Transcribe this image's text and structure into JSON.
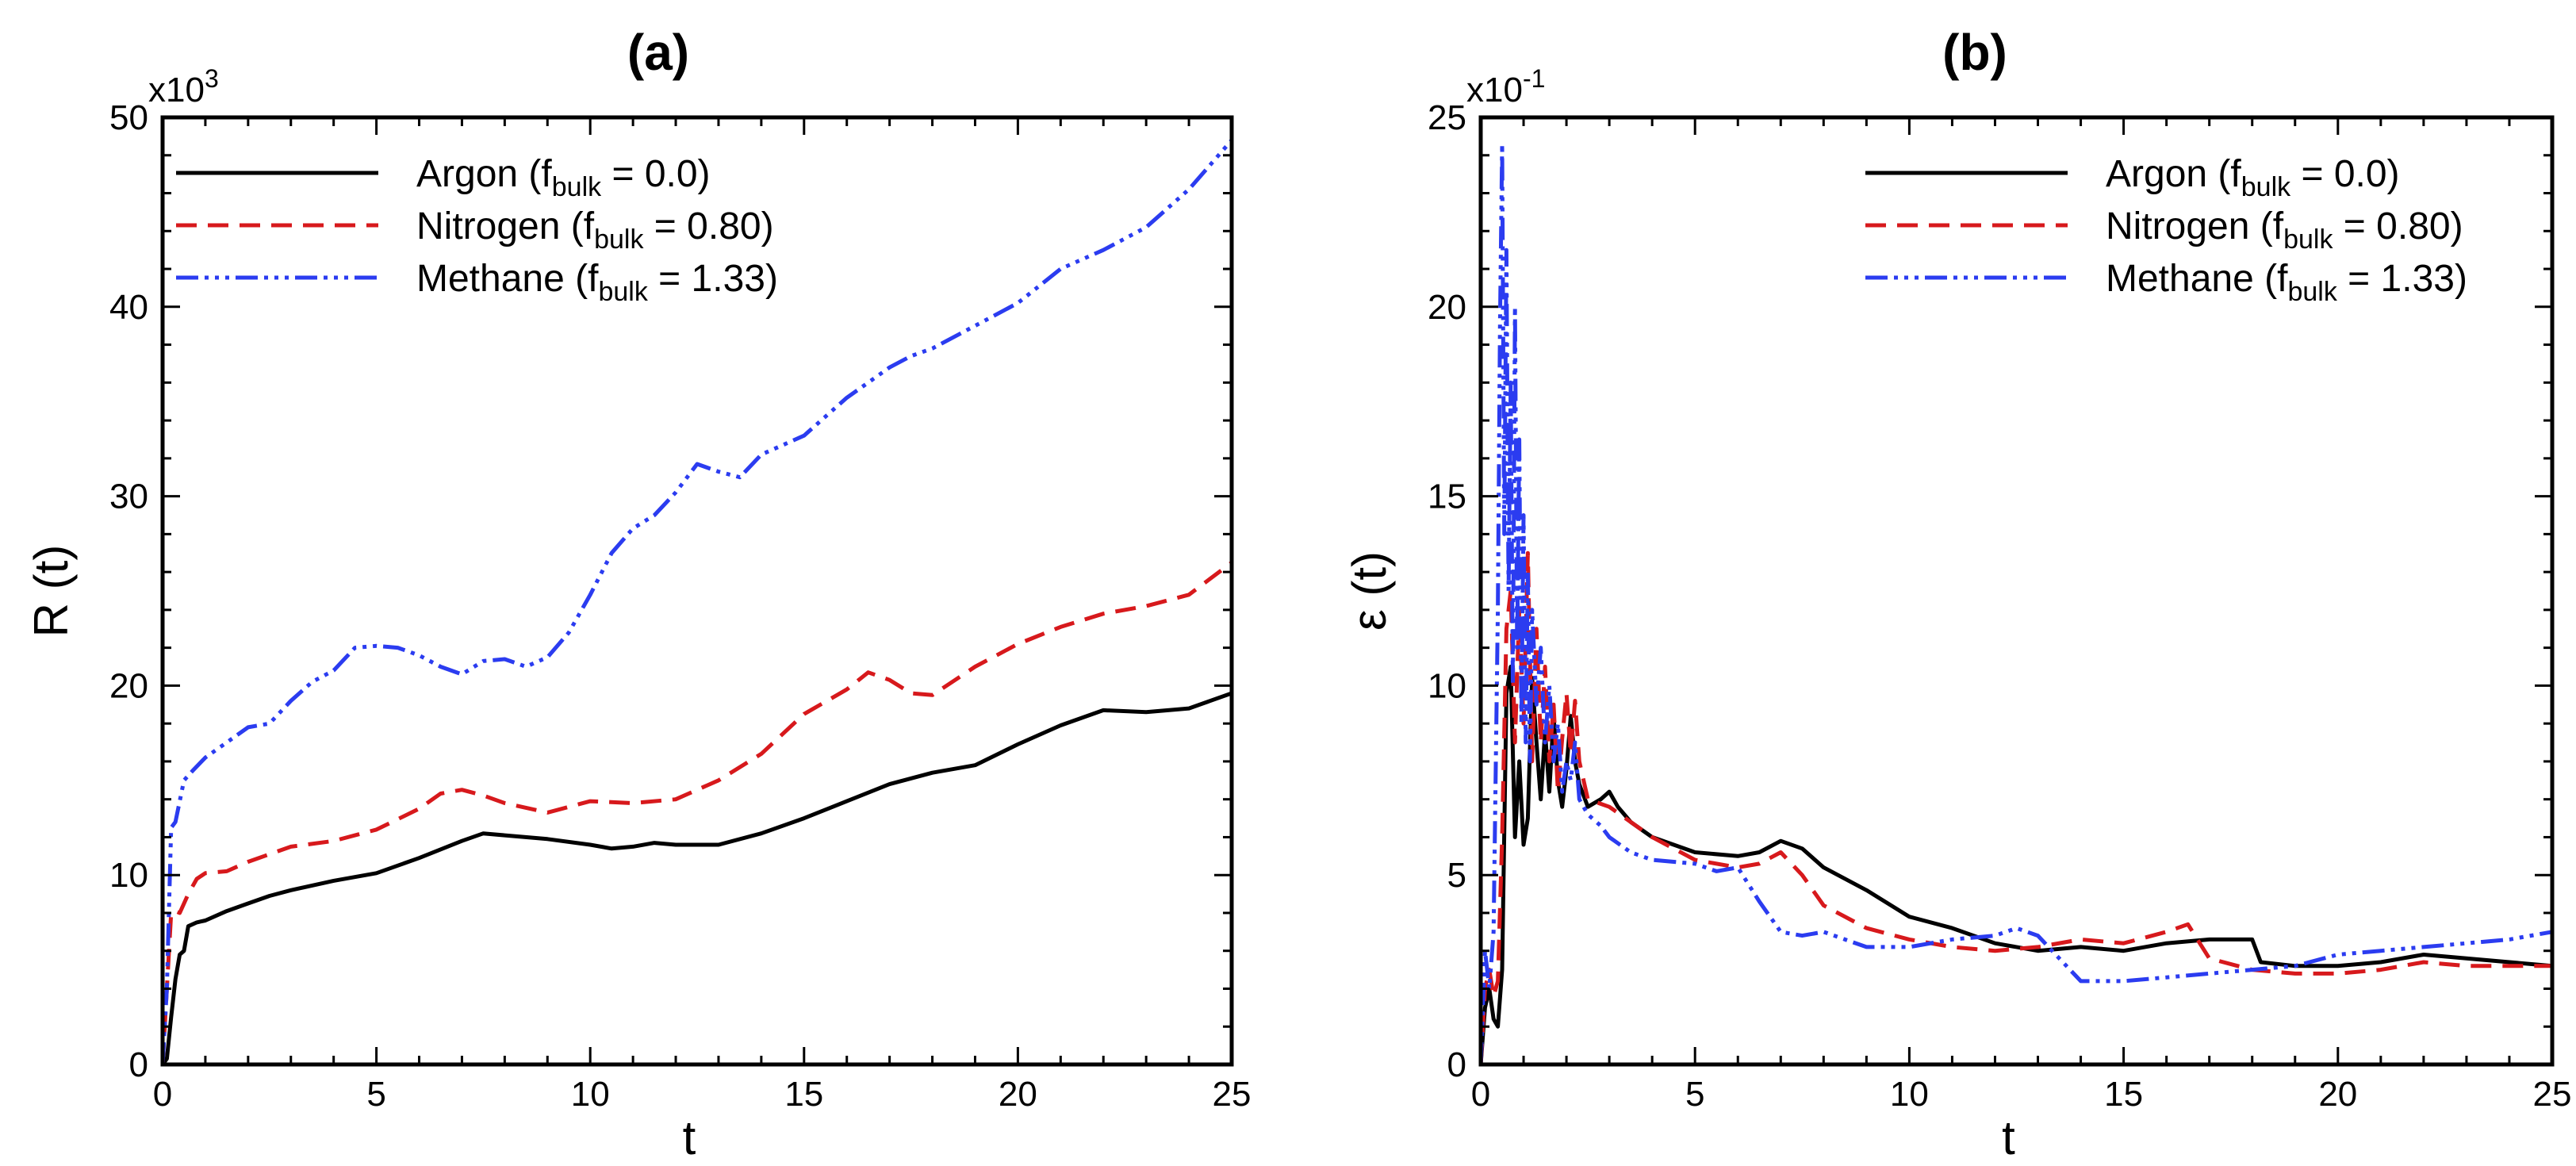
{
  "chart_data": [
    {
      "type": "line",
      "title": "(a)",
      "xlabel": "t",
      "ylabel": "R (t)",
      "y_multiplier": "x10",
      "y_multiplier_exp": "3",
      "xlim": [
        0,
        25
      ],
      "ylim": [
        0,
        50
      ],
      "xticks": [
        0,
        5,
        10,
        15,
        20,
        25
      ],
      "yticks": [
        0,
        10,
        20,
        30,
        40,
        50
      ],
      "legend_position": "top-left",
      "series": [
        {
          "name": "Argon",
          "legend_prefix": "Argon (f",
          "legend_sub": "bulk",
          "legend_suffix": " = 0.0)",
          "color": "#000000",
          "dash": "none",
          "x": [
            0,
            0.1,
            0.2,
            0.3,
            0.4,
            0.5,
            0.6,
            0.8,
            1,
            1.5,
            2,
            2.5,
            3,
            4,
            5,
            6,
            7,
            7.5,
            8,
            9,
            10,
            10.5,
            11,
            11.5,
            12,
            13,
            14,
            15,
            16,
            17,
            18,
            19,
            20,
            21,
            22,
            23,
            24,
            25
          ],
          "y": [
            0,
            0.3,
            2.5,
            4.5,
            5.8,
            6.0,
            7.3,
            7.5,
            7.6,
            8.1,
            8.5,
            8.9,
            9.2,
            9.7,
            10.1,
            10.9,
            11.8,
            12.2,
            12.1,
            11.9,
            11.6,
            11.4,
            11.5,
            11.7,
            11.6,
            11.6,
            12.2,
            13.0,
            13.9,
            14.8,
            15.4,
            15.8,
            16.9,
            17.9,
            18.7,
            18.6,
            18.8,
            19.6
          ]
        },
        {
          "name": "Nitrogen",
          "legend_prefix": "Nitrogen (f",
          "legend_sub": "bulk",
          "legend_suffix": " = 0.80)",
          "color": "#d7191c",
          "dash": "26,14",
          "x": [
            0,
            0.1,
            0.2,
            0.3,
            0.4,
            0.6,
            0.8,
            1,
            1.5,
            2,
            3,
            4,
            5,
            6,
            6.5,
            7,
            7.5,
            8,
            9,
            10,
            11,
            12,
            13,
            14,
            15,
            16,
            16.5,
            17,
            17.5,
            18,
            19,
            20,
            21,
            22,
            23,
            24,
            25
          ],
          "y": [
            0,
            4,
            8.0,
            8.1,
            8.0,
            9.0,
            9.8,
            10.1,
            10.2,
            10.7,
            11.5,
            11.8,
            12.4,
            13.5,
            14.3,
            14.5,
            14.2,
            13.8,
            13.3,
            13.9,
            13.8,
            14.0,
            15.0,
            16.4,
            18.5,
            19.8,
            20.7,
            20.3,
            19.6,
            19.5,
            21.0,
            22.2,
            23.1,
            23.8,
            24.2,
            24.8,
            26.5
          ]
        },
        {
          "name": "Methane",
          "legend_prefix": "Methane (f",
          "legend_sub": "bulk",
          "legend_suffix": " = 1.33)",
          "color": "#2b3cf0",
          "dash": "28,8,5,8,5,8,5,8",
          "x": [
            0,
            0.1,
            0.2,
            0.3,
            0.5,
            0.7,
            1,
            1.5,
            2,
            2.5,
            3,
            3.5,
            4,
            4.5,
            5,
            5.5,
            6,
            6.5,
            7,
            7.5,
            8,
            8.5,
            9,
            9.5,
            10,
            10.5,
            11,
            11.5,
            12,
            12.5,
            13,
            13.5,
            14,
            15,
            16,
            16.5,
            17,
            17.5,
            18,
            19,
            20,
            21,
            22,
            23,
            24,
            25
          ],
          "y": [
            0,
            4,
            12.5,
            12.8,
            15,
            15.5,
            16.2,
            17.0,
            17.8,
            18.0,
            19.2,
            20.2,
            20.8,
            22.0,
            22.1,
            22.0,
            21.6,
            21.0,
            20.6,
            21.3,
            21.4,
            21.0,
            21.5,
            22.8,
            24.8,
            27.0,
            28.3,
            29.0,
            30.2,
            31.7,
            31.3,
            31.0,
            32.2,
            33.2,
            35.2,
            36.0,
            36.8,
            37.4,
            37.8,
            39.0,
            40.2,
            42.0,
            43.0,
            44.2,
            46.2,
            48.8
          ]
        }
      ]
    },
    {
      "type": "line",
      "title": "(b)",
      "xlabel": "t",
      "ylabel": "ε (t)",
      "y_multiplier": "x10",
      "y_multiplier_exp": "-1",
      "xlim": [
        0,
        25
      ],
      "ylim": [
        0,
        25
      ],
      "xticks": [
        0,
        5,
        10,
        15,
        20,
        25
      ],
      "yticks": [
        0,
        5,
        10,
        15,
        20,
        25
      ],
      "legend_position": "top-right",
      "series": [
        {
          "name": "Argon",
          "legend_prefix": "Argon (f",
          "legend_sub": "bulk",
          "legend_suffix": " = 0.0)",
          "color": "#000000",
          "dash": "none",
          "x": [
            0,
            0.1,
            0.2,
            0.3,
            0.4,
            0.5,
            0.6,
            0.7,
            0.8,
            0.9,
            1.0,
            1.1,
            1.2,
            1.3,
            1.4,
            1.5,
            1.6,
            1.7,
            1.8,
            1.9,
            2.0,
            2.1,
            2.2,
            2.3,
            2.5,
            2.8,
            3.0,
            3.2,
            3.5,
            4,
            5,
            6,
            6.5,
            7,
            7.5,
            8,
            9,
            10,
            11,
            12,
            13,
            14,
            15,
            16,
            17,
            18,
            18.2,
            19,
            20,
            21,
            22,
            23,
            24,
            25
          ],
          "y": [
            0,
            1.5,
            2.0,
            1.2,
            1.0,
            2.5,
            9.8,
            10.5,
            6.0,
            8.0,
            5.8,
            6.5,
            10.2,
            8.5,
            7.0,
            8.8,
            7.2,
            9.2,
            7.5,
            6.8,
            7.8,
            9.2,
            8.0,
            7.4,
            6.8,
            7.0,
            7.2,
            6.8,
            6.4,
            6.0,
            5.6,
            5.5,
            5.6,
            5.9,
            5.7,
            5.2,
            4.6,
            3.9,
            3.6,
            3.2,
            3.0,
            3.1,
            3.0,
            3.2,
            3.3,
            3.3,
            2.7,
            2.6,
            2.6,
            2.7,
            2.9,
            2.8,
            2.7,
            2.6
          ]
        },
        {
          "name": "Nitrogen",
          "legend_prefix": "Nitrogen (f",
          "legend_sub": "bulk",
          "legend_suffix": " = 0.80)",
          "color": "#d7191c",
          "dash": "26,14",
          "x": [
            0,
            0.1,
            0.2,
            0.3,
            0.4,
            0.5,
            0.6,
            0.7,
            0.8,
            0.9,
            1.0,
            1.1,
            1.2,
            1.3,
            1.4,
            1.5,
            1.6,
            1.7,
            1.8,
            1.9,
            2.0,
            2.1,
            2.2,
            2.3,
            2.5,
            3,
            4,
            5,
            6,
            6.5,
            7,
            7.5,
            8,
            9,
            10,
            11,
            12,
            13,
            14,
            15,
            16,
            16.5,
            17,
            18,
            19,
            20,
            21,
            22,
            23,
            24,
            25
          ],
          "y": [
            0,
            2.0,
            2.5,
            1.8,
            2.2,
            6.0,
            11.5,
            12.5,
            8.5,
            12.0,
            9.0,
            13.5,
            8.0,
            11.5,
            8.5,
            10.5,
            8.0,
            9.5,
            7.2,
            8.6,
            9.8,
            8.2,
            9.6,
            8.0,
            7.0,
            6.8,
            6.0,
            5.4,
            5.2,
            5.3,
            5.6,
            5.0,
            4.2,
            3.6,
            3.3,
            3.1,
            3.0,
            3.1,
            3.3,
            3.2,
            3.5,
            3.7,
            2.8,
            2.5,
            2.4,
            2.4,
            2.5,
            2.7,
            2.6,
            2.6,
            2.6
          ]
        },
        {
          "name": "Methane",
          "legend_prefix": "Methane (f",
          "legend_sub": "bulk",
          "legend_suffix": " = 1.33)",
          "color": "#2b3cf0",
          "dash": "28,8,5,8,5,8,5,8",
          "x": [
            0,
            0.1,
            0.2,
            0.3,
            0.4,
            0.45,
            0.5,
            0.55,
            0.6,
            0.65,
            0.7,
            0.75,
            0.8,
            0.85,
            0.9,
            0.95,
            1.0,
            1.05,
            1.1,
            1.15,
            1.2,
            1.3,
            1.4,
            1.5,
            1.6,
            1.7,
            1.8,
            1.9,
            2.0,
            2.1,
            2.2,
            2.3,
            2.5,
            2.8,
            3,
            3.5,
            4,
            5,
            5.5,
            6,
            6.5,
            7,
            7.5,
            8,
            8.5,
            9,
            10,
            11,
            12,
            12.5,
            13,
            13.5,
            14,
            15,
            16,
            17,
            18,
            19,
            20,
            21,
            22,
            23,
            24,
            25
          ],
          "y": [
            0,
            3.0,
            2.0,
            3.5,
            12.0,
            19.5,
            24.3,
            14.0,
            21.5,
            12.5,
            18.0,
            10.0,
            20.0,
            11.0,
            16.5,
            9.0,
            14.5,
            8.5,
            13.0,
            8.0,
            12.0,
            9.5,
            11.0,
            8.5,
            10.0,
            8.0,
            9.0,
            7.2,
            8.0,
            7.5,
            8.5,
            7.0,
            6.6,
            6.3,
            6.0,
            5.6,
            5.4,
            5.3,
            5.1,
            5.2,
            4.3,
            3.5,
            3.4,
            3.5,
            3.3,
            3.1,
            3.1,
            3.3,
            3.4,
            3.6,
            3.4,
            2.8,
            2.2,
            2.2,
            2.3,
            2.4,
            2.5,
            2.6,
            2.9,
            3.0,
            3.1,
            3.2,
            3.3,
            3.5
          ]
        }
      ]
    }
  ]
}
